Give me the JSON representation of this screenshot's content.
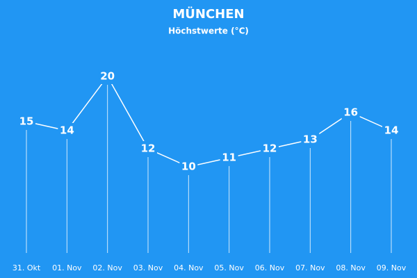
{
  "chart_data": {
    "type": "line",
    "title": "MÜNCHEN",
    "subtitle": "Höchstwerte (°C)",
    "categories": [
      "31. Okt",
      "01. Nov",
      "02. Nov",
      "03. Nov",
      "04. Nov",
      "05. Nov",
      "06. Nov",
      "07. Nov",
      "08. Nov",
      "09. Nov"
    ],
    "values": [
      15,
      14,
      20,
      12,
      10,
      11,
      12,
      13,
      16,
      14
    ],
    "color": "#ffffff",
    "background": "#2196f3",
    "ylim": [
      0,
      20
    ]
  }
}
